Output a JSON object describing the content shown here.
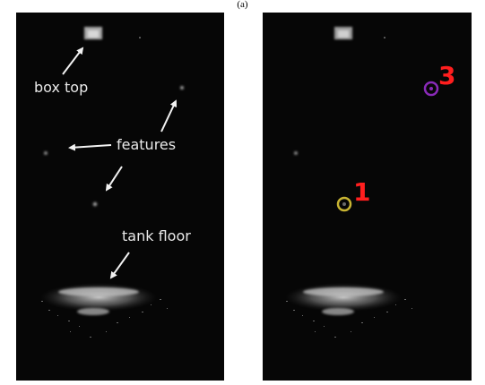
{
  "figure": {
    "caption": "(a)"
  },
  "left_panel": {
    "labels": {
      "box_top": "box top",
      "features": "features",
      "tank_floor": "tank floor"
    },
    "arrow_color": "#f2f2f2"
  },
  "right_panel": {
    "markers": [
      {
        "number": "1",
        "number_color": "#ff1e1e",
        "ring_color": "#c8b432"
      },
      {
        "number": "3",
        "number_color": "#ff1e1e",
        "ring_color": "#8a2ab8"
      }
    ]
  },
  "colors": {
    "background": "#ffffff",
    "sonar_background": "#060606",
    "sonar_return": "#bdbdbd"
  }
}
